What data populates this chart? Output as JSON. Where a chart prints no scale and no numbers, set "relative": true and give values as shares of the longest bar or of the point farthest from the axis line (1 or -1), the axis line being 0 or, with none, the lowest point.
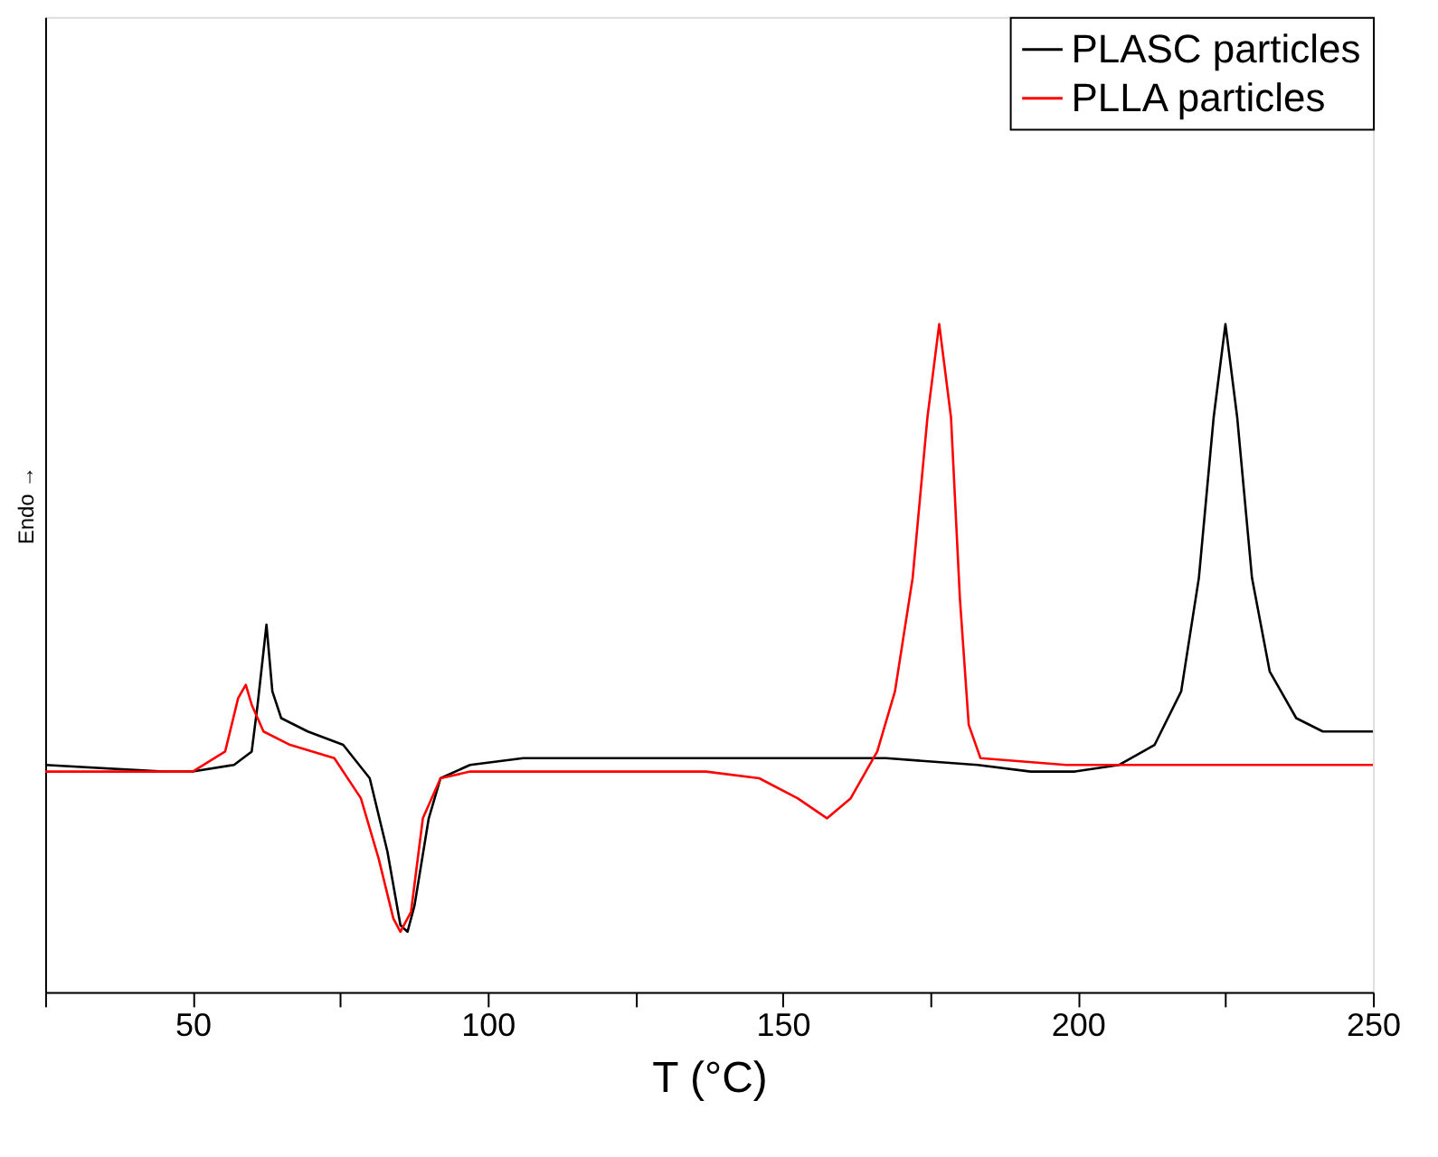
{
  "chart_data": {
    "type": "line",
    "relative": true,
    "xlabel": "T (°C)",
    "ylabel": "Endo →",
    "xlim": [
      25,
      250
    ],
    "xticks": [
      {
        "value": 25,
        "label": null
      },
      50,
      {
        "value": 75,
        "label": null
      },
      100,
      {
        "value": 125,
        "label": null
      },
      150,
      {
        "value": 175,
        "label": null
      },
      200,
      {
        "value": 225,
        "label": null
      },
      250
    ],
    "grid": false,
    "legend": "top right",
    "marker": "none",
    "line_style": "solid",
    "series": [
      {
        "name": "PLASC particles",
        "color": "#000000",
        "x": [
          25,
          45,
          50,
          57,
          60,
          61,
          62.5,
          63.5,
          65,
          69.5,
          75.5,
          80,
          83,
          85.2,
          86.4,
          87.6,
          90,
          92,
          97,
          106,
          137,
          167.5,
          183,
          192,
          199.5,
          207,
          213,
          217.5,
          220.5,
          223,
          225,
          227,
          229.5,
          232.5,
          237,
          241.5,
          250
        ],
        "values": [
          0.34,
          0.33,
          0.33,
          0.34,
          0.36,
          0.43,
          0.55,
          0.45,
          0.41,
          0.39,
          0.37,
          0.32,
          0.21,
          0.1,
          0.09,
          0.13,
          0.26,
          0.32,
          0.34,
          0.35,
          0.35,
          0.35,
          0.34,
          0.33,
          0.33,
          0.34,
          0.37,
          0.45,
          0.62,
          0.86,
          1.0,
          0.86,
          0.62,
          0.48,
          0.41,
          0.39,
          0.39
        ]
      },
      {
        "name": "PLLA particles",
        "color": "#ff0000",
        "x": [
          25,
          50,
          55.5,
          57.7,
          59,
          60,
          62,
          66.5,
          74,
          78.5,
          81.5,
          84,
          85.2,
          87,
          89,
          92,
          97,
          137,
          146,
          152.5,
          157.5,
          161.5,
          166,
          169,
          172,
          174.5,
          176.5,
          178.5,
          180,
          181.5,
          183.5,
          198,
          250
        ],
        "values": [
          0.33,
          0.33,
          0.36,
          0.44,
          0.46,
          0.43,
          0.39,
          0.37,
          0.35,
          0.29,
          0.2,
          0.11,
          0.09,
          0.12,
          0.26,
          0.32,
          0.33,
          0.33,
          0.32,
          0.29,
          0.26,
          0.29,
          0.36,
          0.45,
          0.62,
          0.86,
          1.0,
          0.86,
          0.59,
          0.4,
          0.35,
          0.34,
          0.34
        ]
      }
    ]
  }
}
